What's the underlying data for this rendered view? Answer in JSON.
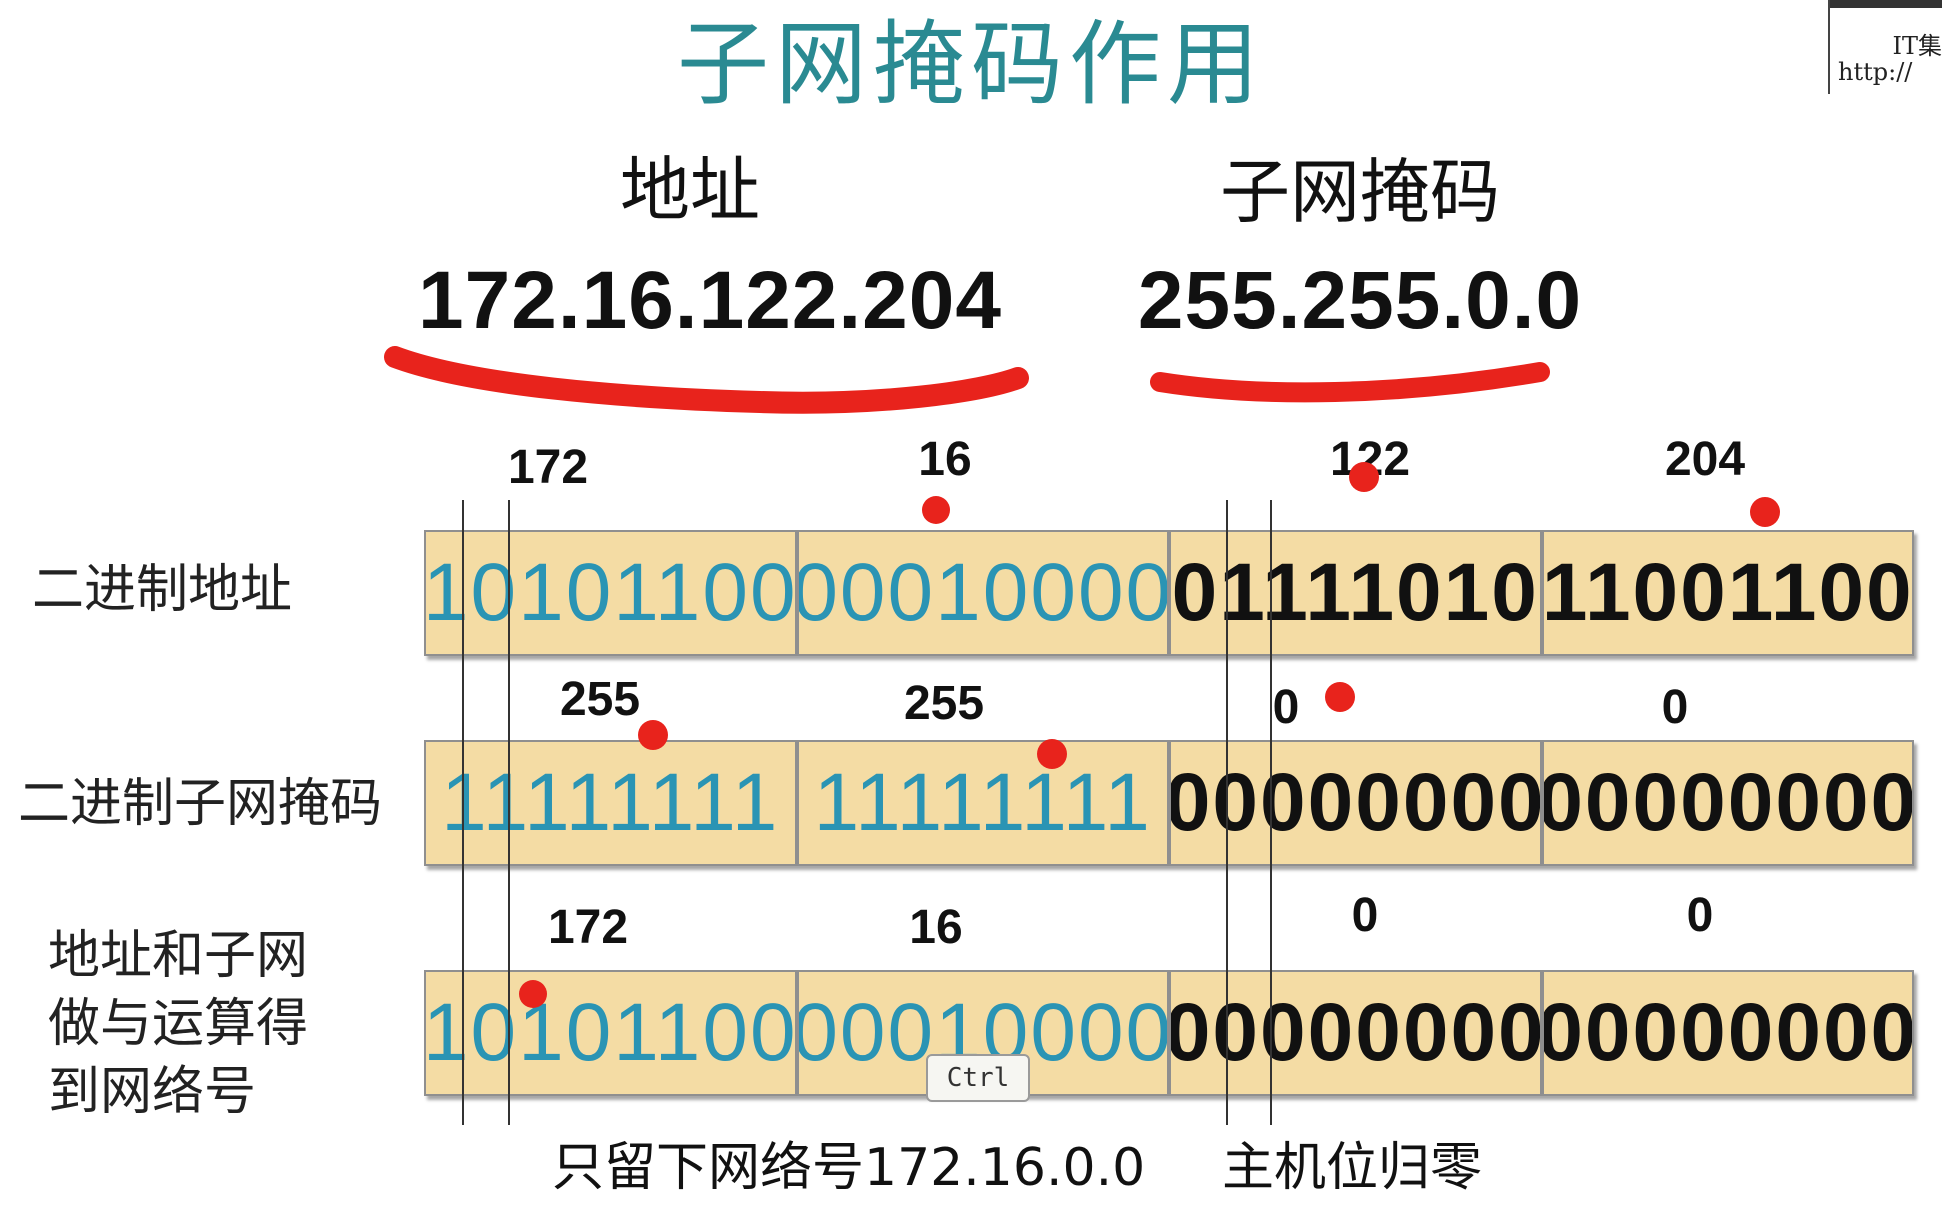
{
  "title": "子网掩码作用",
  "header": {
    "address_label": "地址",
    "mask_label": "子网掩码",
    "address_value": "172.16.122.204",
    "mask_value": "255.255.0.0"
  },
  "rows": [
    {
      "label": "二进制地址",
      "octets": [
        "172",
        "16",
        "122",
        "204"
      ],
      "cells": [
        "10101100",
        "00010000",
        "01111010",
        "11001100"
      ]
    },
    {
      "label": "二进制子网掩码",
      "octets": [
        "255",
        "255",
        "0",
        "0"
      ],
      "cells": [
        "11111111",
        "11111111",
        "00000000",
        "00000000"
      ]
    },
    {
      "label_lines": [
        "地址和子网",
        "做与运算得",
        "到网络号"
      ],
      "octets": [
        "172",
        "16",
        "0",
        "0"
      ],
      "cells": [
        "10101100",
        "00010000",
        "00000000",
        "00000000"
      ]
    }
  ],
  "footer": {
    "network_note": "只留下网络号172.16.0.0",
    "host_note": "主机位归零"
  },
  "ctrl_key": "Ctrl",
  "watermark": {
    "line1": "IT集",
    "line2": "http://"
  },
  "colors": {
    "title": "#2a8a92",
    "cell_fill": "#f4dca4",
    "network_bits": "#2a94b4",
    "annotation_red": "#e8231c"
  }
}
